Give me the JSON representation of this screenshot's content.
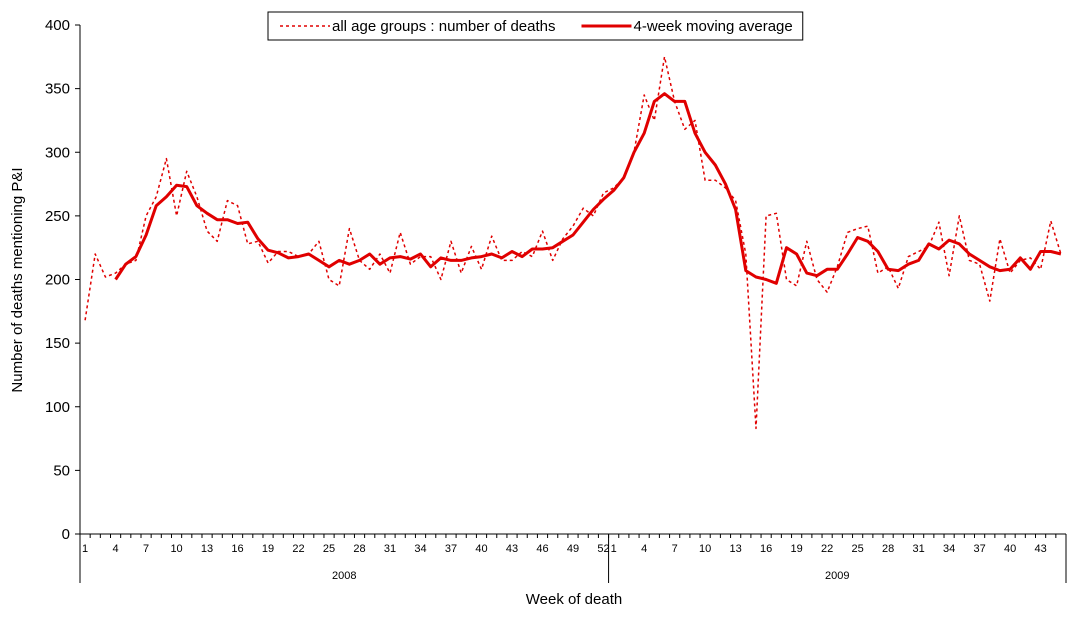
{
  "chart_data": {
    "type": "line",
    "x_label": "Week of death",
    "y_label": "Number of deaths mentioning P&I",
    "categories": [
      1,
      null,
      null,
      4,
      null,
      null,
      7,
      null,
      null,
      10,
      null,
      null,
      13,
      null,
      null,
      16,
      null,
      null,
      19,
      null,
      null,
      22,
      null,
      null,
      25,
      null,
      null,
      28,
      null,
      null,
      31,
      null,
      null,
      34,
      null,
      null,
      37,
      null,
      null,
      40,
      null,
      null,
      43,
      null,
      null,
      46,
      null,
      null,
      49,
      null,
      null,
      52,
      1,
      null,
      null,
      4,
      null,
      null,
      7,
      null,
      null,
      10,
      null,
      null,
      13,
      null,
      null,
      16,
      null,
      null,
      19,
      null,
      null,
      22,
      null,
      null,
      25,
      null,
      null,
      28,
      null,
      null,
      31,
      null,
      null,
      34,
      null,
      null,
      37,
      null,
      null,
      40,
      null,
      null,
      43,
      null,
      null
    ],
    "category_groups": [
      {
        "name": "2008",
        "size": 52
      },
      {
        "name": "2009",
        "size": 45
      }
    ],
    "series": [
      {
        "name": "all age groups : number of deaths",
        "color": "#e00000",
        "dash": "dotted",
        "values": [
          168,
          220,
          202,
          205,
          212,
          215,
          250,
          265,
          295,
          250,
          285,
          265,
          238,
          230,
          262,
          258,
          228,
          230,
          213,
          222,
          222,
          218,
          220,
          230,
          200,
          195,
          240,
          215,
          208,
          220,
          205,
          237,
          212,
          218,
          218,
          200,
          230,
          205,
          226,
          208,
          234,
          215,
          215,
          222,
          218,
          238,
          215,
          232,
          242,
          256,
          250,
          268,
          272,
          280,
          300,
          345,
          325,
          375,
          340,
          318,
          325,
          278,
          278,
          272,
          262,
          220,
          83,
          250,
          252,
          200,
          195,
          230,
          200,
          190,
          210,
          237,
          240,
          242,
          205,
          210,
          193,
          218,
          222,
          226,
          245,
          203,
          250,
          215,
          212,
          183,
          232,
          205,
          215,
          217,
          208,
          246,
          220
        ]
      },
      {
        "name": "4-week moving average",
        "color": "#e00000",
        "dash": "solid",
        "values": [
          null,
          null,
          null,
          200,
          212,
          218,
          235,
          258,
          265,
          274,
          273,
          258,
          252,
          247,
          247,
          244,
          245,
          232,
          223,
          221,
          217,
          218,
          220,
          215,
          210,
          215,
          212,
          215,
          220,
          212,
          217,
          218,
          216,
          220,
          210,
          217,
          215,
          215,
          217,
          218,
          220,
          217,
          222,
          218,
          224,
          224,
          225,
          230,
          235,
          245,
          255,
          263,
          270,
          280,
          300,
          315,
          340,
          346,
          340,
          340,
          315,
          300,
          290,
          275,
          255,
          207,
          202,
          200,
          197,
          225,
          220,
          205,
          203,
          208,
          208,
          220,
          233,
          230,
          222,
          208,
          207,
          212,
          215,
          228,
          224,
          231,
          228,
          220,
          215,
          210,
          207,
          208,
          217,
          208,
          222,
          222,
          220
        ]
      }
    ],
    "ylim": [
      0,
      400
    ],
    "yticks": [
      0,
      50,
      100,
      150,
      200,
      250,
      300,
      350,
      400
    ],
    "grid": false,
    "legend": "top"
  }
}
